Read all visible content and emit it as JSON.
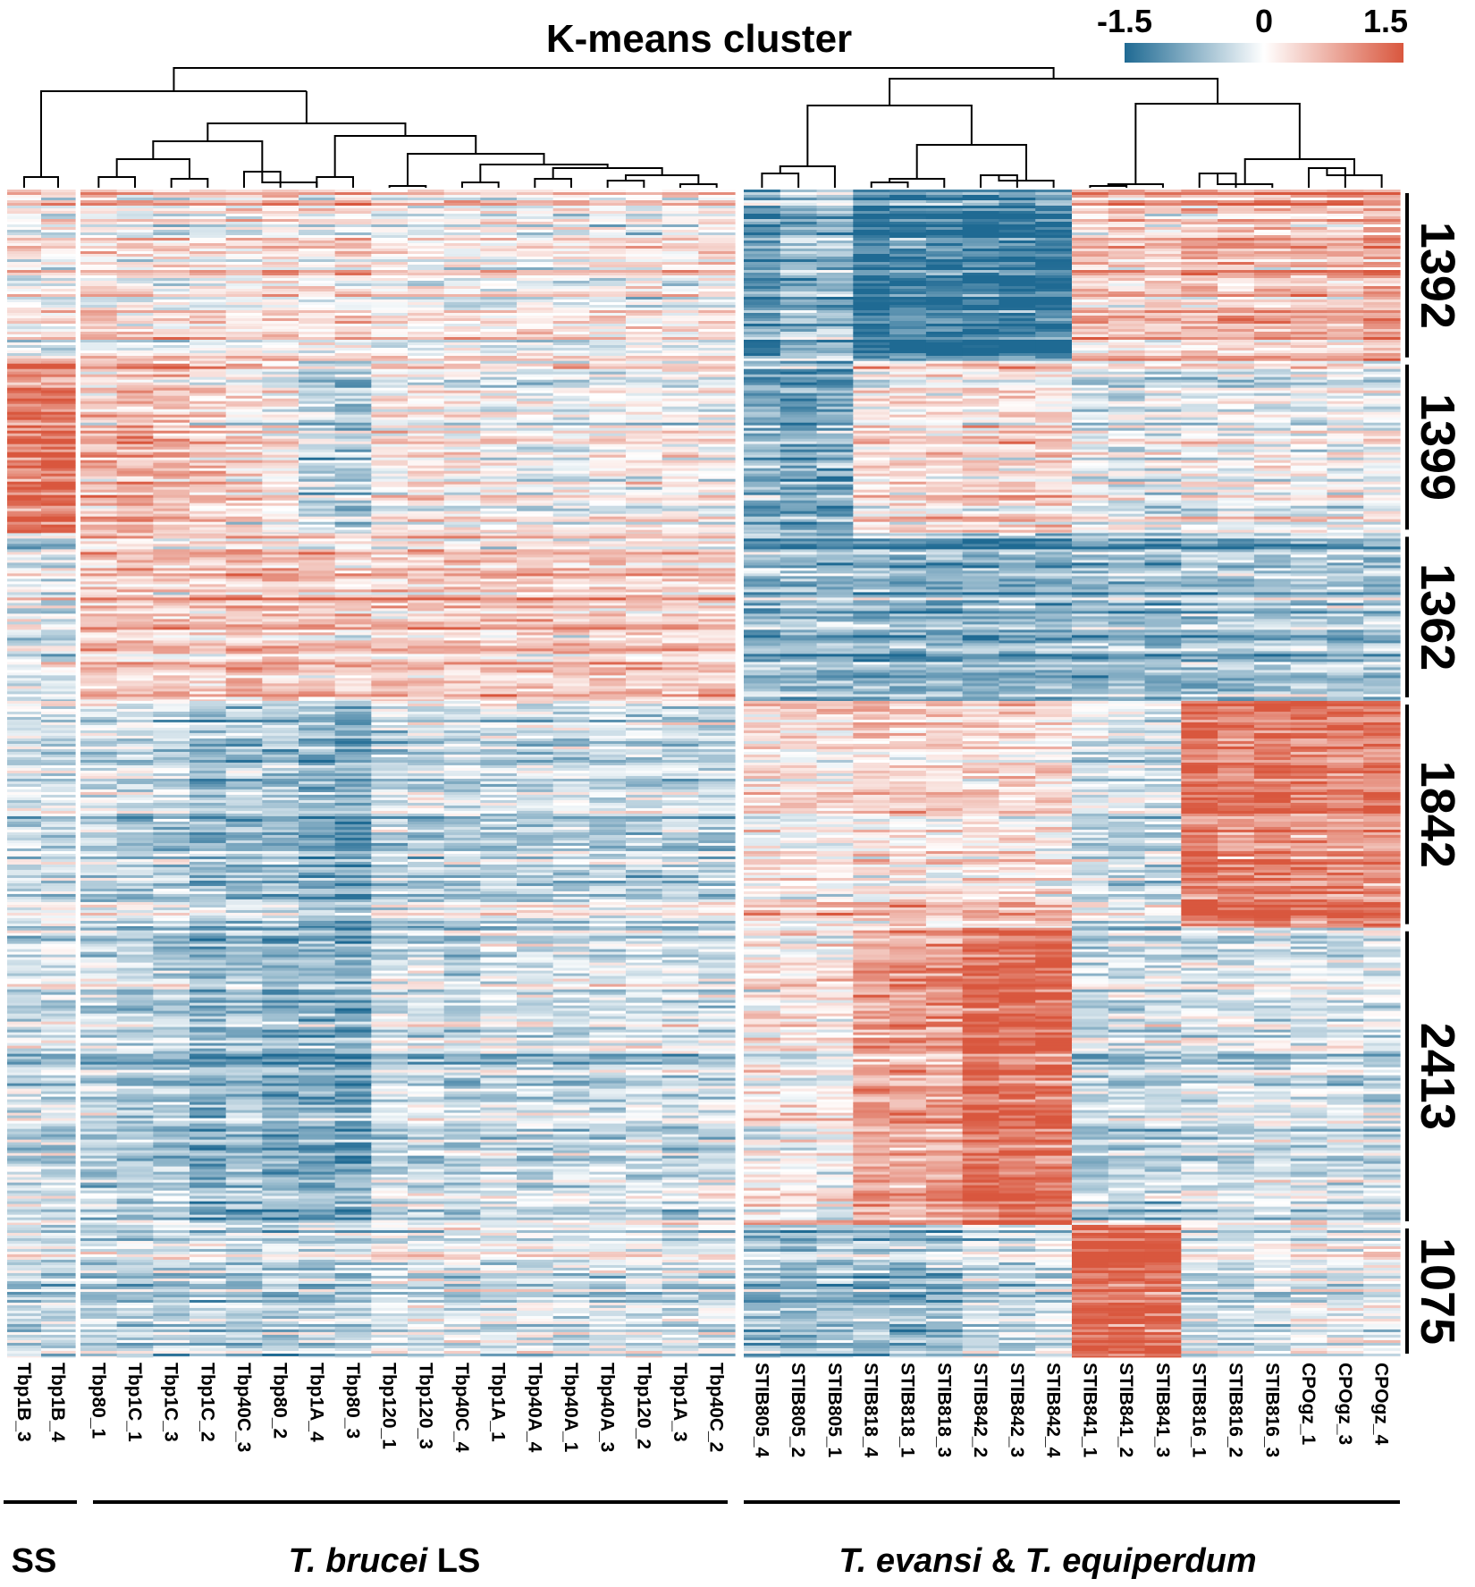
{
  "chart_data": {
    "type": "heatmap",
    "title": "K-means cluster",
    "color_scale": {
      "min": -1.5,
      "mid": 0,
      "max": 1.5,
      "tick_labels": [
        "-1.5",
        "0",
        "1.5"
      ],
      "colors": {
        "low": "#1f6a93",
        "mid": "#ffffff",
        "high": "#d9573e"
      }
    },
    "columns": [
      "Tbp1B_3",
      "Tbp1B_4",
      "Tbp80_1",
      "Tbp1C_1",
      "Tbp1C_3",
      "Tbp1C_2",
      "Tbp40C_3",
      "Tbp80_2",
      "Tbp1A_4",
      "Tbp80_3",
      "Tbp120_1",
      "Tbp120_3",
      "Tbp40C_4",
      "Tbp1A_1",
      "Tbp40A_4",
      "Tbp40A_1",
      "Tbp40A_3",
      "Tbp120_2",
      "Tbp1A_3",
      "Tbp40C_2",
      "STIB805_4",
      "STIB805_2",
      "STIB805_1",
      "STIB818_4",
      "STIB818_1",
      "STIB818_3",
      "STIB842_2",
      "STIB842_3",
      "STIB842_4",
      "STIB841_1",
      "STIB841_2",
      "STIB841_3",
      "STIB816_1",
      "STIB816_2",
      "STIB816_3",
      "CPOgz_1",
      "CPOgz_3",
      "CPOgz_4"
    ],
    "clusters": [
      {
        "label": "1392",
        "size": 1392
      },
      {
        "label": "1399",
        "size": 1399
      },
      {
        "label": "1362",
        "size": 1362
      },
      {
        "label": "1842",
        "size": 1842
      },
      {
        "label": "2413",
        "size": 2413
      },
      {
        "label": "1075",
        "size": 1075
      }
    ],
    "groups": [
      {
        "label": "SS",
        "italic_part": "",
        "start": 0,
        "end": 1
      },
      {
        "label": " LS",
        "italic_part": "T. brucei",
        "start": 2,
        "end": 19
      },
      {
        "label": "T. evansi & T. equiperdum",
        "italic_part": "",
        "start": 20,
        "end": 37
      }
    ],
    "cluster_means": [
      [
        0.1,
        0.1,
        0.3,
        0.2,
        0.2,
        0.2,
        0.2,
        0.4,
        0.2,
        0.3,
        0.1,
        0.1,
        0.1,
        0.1,
        0.1,
        0.1,
        0.1,
        0.1,
        0.1,
        0.2,
        -1.0,
        -0.7,
        -0.7,
        -1.3,
        -1.3,
        -1.3,
        -1.4,
        -1.4,
        -1.4,
        0.5,
        0.5,
        0.5,
        0.6,
        0.6,
        0.6,
        0.6,
        0.6,
        0.8
      ],
      [
        1.2,
        1.2,
        0.5,
        0.6,
        0.6,
        0.3,
        0.2,
        0.1,
        -0.4,
        -0.6,
        0.1,
        0.1,
        0.0,
        0.0,
        -0.1,
        -0.1,
        0.0,
        0.0,
        0.0,
        0.0,
        -0.9,
        -1.0,
        -0.9,
        0.2,
        0.2,
        0.2,
        0.3,
        0.3,
        0.3,
        -0.2,
        -0.2,
        -0.2,
        -0.1,
        -0.1,
        -0.1,
        -0.1,
        -0.1,
        -0.1
      ],
      [
        -0.2,
        -0.2,
        0.5,
        0.5,
        0.5,
        0.5,
        0.6,
        0.6,
        0.5,
        0.4,
        0.5,
        0.5,
        0.5,
        0.5,
        0.5,
        0.5,
        0.5,
        0.5,
        0.5,
        0.5,
        -0.7,
        -0.7,
        -0.7,
        -0.8,
        -0.8,
        -0.8,
        -0.8,
        -0.8,
        -0.8,
        -0.7,
        -0.7,
        -0.7,
        -0.6,
        -0.6,
        -0.6,
        -0.6,
        -0.6,
        -0.6
      ],
      [
        -0.3,
        -0.3,
        -0.3,
        -0.4,
        -0.4,
        -0.7,
        -0.6,
        -0.6,
        -0.8,
        -0.9,
        -0.4,
        -0.4,
        -0.4,
        -0.4,
        -0.4,
        -0.4,
        -0.4,
        -0.4,
        -0.4,
        -0.4,
        0.2,
        0.2,
        0.2,
        0.3,
        0.3,
        0.3,
        0.3,
        0.3,
        0.3,
        -0.3,
        -0.3,
        -0.3,
        1.2,
        1.1,
        1.2,
        1.1,
        1.1,
        1.1
      ],
      [
        -0.3,
        -0.3,
        -0.4,
        -0.5,
        -0.5,
        -0.8,
        -0.6,
        -0.8,
        -0.8,
        -0.9,
        -0.3,
        -0.3,
        -0.4,
        -0.3,
        -0.3,
        -0.3,
        -0.3,
        -0.3,
        -0.3,
        -0.3,
        0.1,
        0.1,
        0.1,
        0.8,
        0.8,
        0.8,
        1.3,
        1.3,
        1.3,
        -0.4,
        -0.4,
        -0.4,
        -0.3,
        -0.3,
        -0.3,
        -0.3,
        -0.3,
        -0.3
      ],
      [
        -0.3,
        -0.3,
        -0.4,
        -0.4,
        -0.4,
        -0.4,
        -0.4,
        -0.4,
        -0.4,
        -0.4,
        -0.2,
        -0.2,
        -0.2,
        -0.2,
        -0.2,
        -0.2,
        -0.2,
        -0.2,
        -0.2,
        -0.2,
        -0.6,
        -0.6,
        -0.6,
        -0.6,
        -0.6,
        -0.6,
        -0.3,
        -0.3,
        -0.3,
        1.5,
        1.5,
        1.5,
        -0.2,
        -0.2,
        -0.2,
        -0.1,
        -0.1,
        -0.1
      ]
    ]
  }
}
